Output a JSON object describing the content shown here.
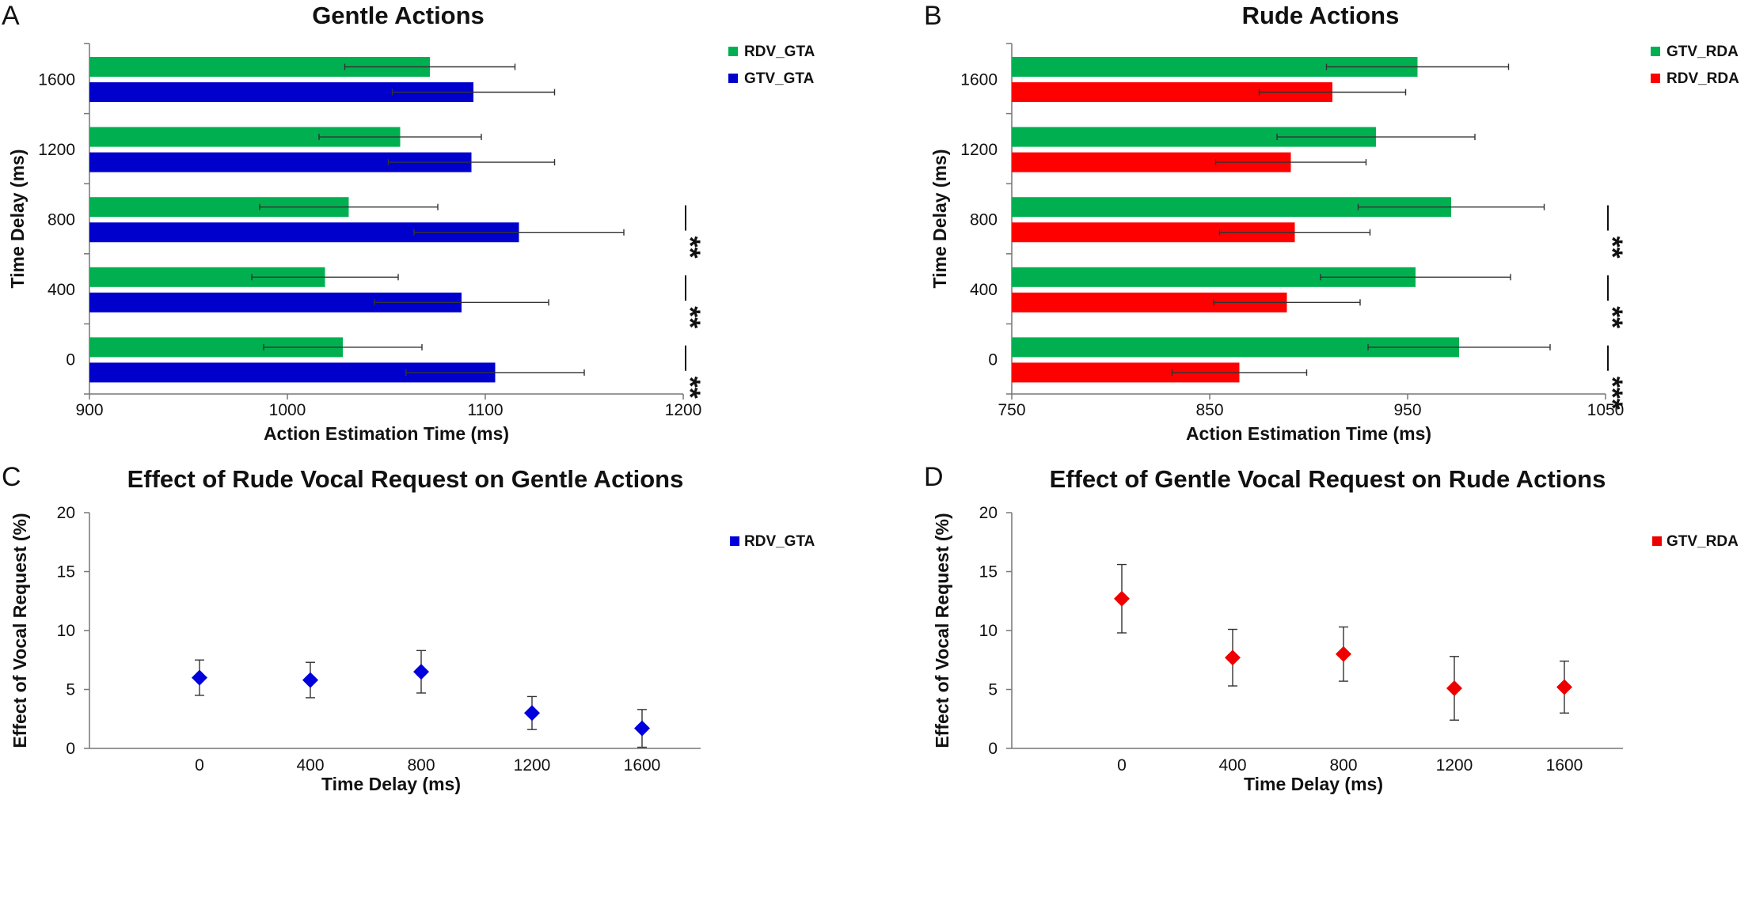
{
  "chart_data": [
    {
      "panel_label": "A",
      "type": "bar",
      "orientation": "horizontal",
      "title": "Gentle Actions",
      "xlabel": "Action Estimation Time (ms)",
      "ylabel": "Time Delay (ms)",
      "xlim": [
        900,
        1200
      ],
      "xticks": [
        "900",
        "1000",
        "1100",
        "1200"
      ],
      "categories": [
        "1600",
        "1200",
        "800",
        "400",
        "0"
      ],
      "series": [
        {
          "name": "RDV_GTA",
          "color": "#00b050",
          "values": [
            1072,
            1057,
            1031,
            1019,
            1028
          ],
          "errors": [
            43,
            41,
            45,
            37,
            40
          ]
        },
        {
          "name": "GTV_GTA",
          "color": "#0000cc",
          "values": [
            1094,
            1093,
            1117,
            1088,
            1105
          ],
          "errors": [
            41,
            42,
            53,
            44,
            45
          ]
        }
      ],
      "significance": [
        "",
        "",
        "**",
        "**",
        "**"
      ],
      "legend_position": "top-right"
    },
    {
      "panel_label": "B",
      "type": "bar",
      "orientation": "horizontal",
      "title": "Rude Actions",
      "xlabel": "Action Estimation Time (ms)",
      "ylabel": "Time Delay (ms)",
      "xlim": [
        750,
        1050
      ],
      "xticks": [
        "750",
        "850",
        "950",
        "1050"
      ],
      "categories": [
        "1600",
        "1200",
        "800",
        "400",
        "0"
      ],
      "series": [
        {
          "name": "GTV_RDA",
          "color": "#00b050",
          "values": [
            955,
            934,
            972,
            954,
            976
          ],
          "errors": [
            46,
            50,
            47,
            48,
            46
          ]
        },
        {
          "name": "RDV_RDA",
          "color": "#ff0000",
          "values": [
            912,
            891,
            893,
            889,
            865
          ],
          "errors": [
            37,
            38,
            38,
            37,
            34
          ]
        }
      ],
      "significance": [
        "",
        "",
        "**",
        "**",
        "***"
      ],
      "legend_position": "top-right"
    },
    {
      "panel_label": "C",
      "type": "scatter",
      "title": "Effect of Rude Vocal Request on Gentle Actions",
      "xlabel": "Time Delay (ms)",
      "ylabel": "Effect of Vocal Request (%)",
      "ylim": [
        0,
        20
      ],
      "yticks": [
        "0",
        "5",
        "10",
        "15",
        "20"
      ],
      "categories": [
        "0",
        "400",
        "800",
        "1200",
        "1600"
      ],
      "series": [
        {
          "name": "RDV_GTA",
          "color": "#0000dd",
          "values": [
            6.0,
            5.8,
            6.5,
            3.0,
            1.7
          ],
          "errors": [
            1.5,
            1.5,
            1.8,
            1.4,
            1.6
          ]
        }
      ],
      "legend_position": "top-right"
    },
    {
      "panel_label": "D",
      "type": "scatter",
      "title": "Effect of Gentle Vocal Request on Rude Actions",
      "xlabel": "Time Delay (ms)",
      "ylabel": "Effect of Vocal Request (%)",
      "ylim": [
        0,
        20
      ],
      "yticks": [
        "0",
        "5",
        "10",
        "15",
        "20"
      ],
      "categories": [
        "0",
        "400",
        "800",
        "1200",
        "1600"
      ],
      "series": [
        {
          "name": "GTV_RDA",
          "color": "#ee0000",
          "values": [
            12.7,
            7.7,
            8.0,
            5.1,
            5.2
          ],
          "errors": [
            2.9,
            2.4,
            2.3,
            2.7,
            2.2
          ]
        }
      ],
      "legend_position": "top-right"
    }
  ]
}
